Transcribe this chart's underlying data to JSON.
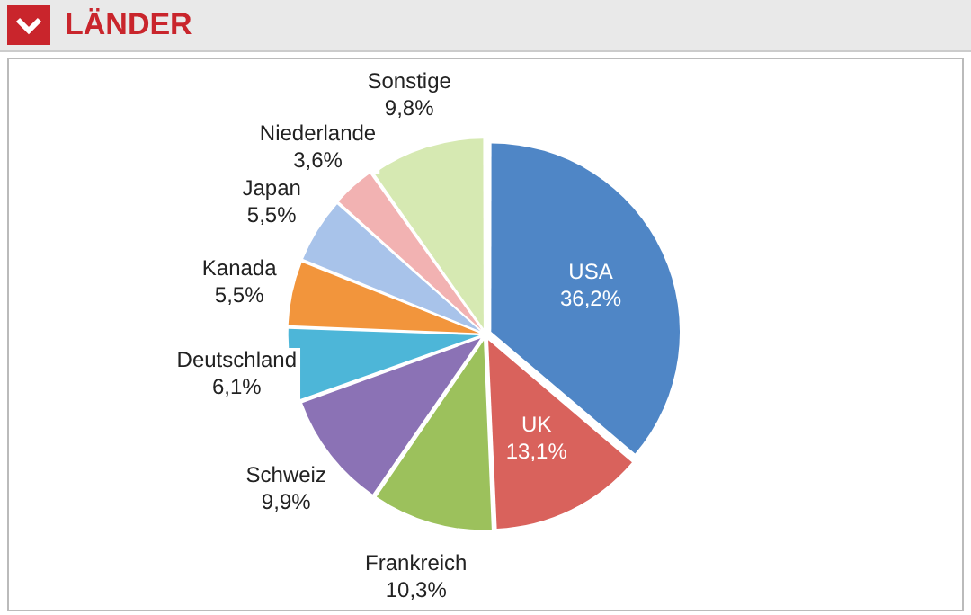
{
  "chart_data": {
    "type": "pie",
    "title": "LÄNDER",
    "categories": [
      "USA",
      "UK",
      "Frankreich",
      "Schweiz",
      "Deutschland",
      "Kanada",
      "Japan",
      "Niederlande",
      "Sonstige"
    ],
    "values": [
      36.2,
      13.1,
      10.3,
      9.9,
      6.1,
      5.5,
      5.5,
      3.6,
      9.8
    ],
    "value_labels": [
      "36,2%",
      "13,1%",
      "10,3%",
      "9,9%",
      "6,1%",
      "5,5%",
      "5,5%",
      "3,6%",
      "9,8%"
    ],
    "colors": [
      "#4f86c6",
      "#d9625c",
      "#9cc15c",
      "#8b72b5",
      "#4db6d8",
      "#f2953c",
      "#a8c3ea",
      "#f2b2b2",
      "#d6e9b2"
    ]
  }
}
